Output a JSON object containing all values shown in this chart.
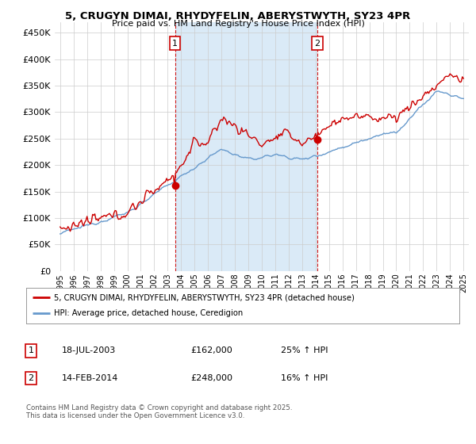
{
  "title_line1": "5, CRUGYN DIMAI, RHYDYFELIN, ABERYSTWYTH, SY23 4PR",
  "title_line2": "Price paid vs. HM Land Registry's House Price Index (HPI)",
  "ylabel_ticks": [
    "£0",
    "£50K",
    "£100K",
    "£150K",
    "£200K",
    "£250K",
    "£300K",
    "£350K",
    "£400K",
    "£450K"
  ],
  "ytick_values": [
    0,
    50000,
    100000,
    150000,
    200000,
    250000,
    300000,
    350000,
    400000,
    450000
  ],
  "ylim": [
    0,
    470000
  ],
  "xlim_start": 1994.6,
  "xlim_end": 2025.4,
  "background_color": "#f0f6fc",
  "shade_color": "#daeaf7",
  "grid_color": "#cccccc",
  "line1_color": "#cc0000",
  "line2_color": "#6699cc",
  "vline_color": "#cc0000",
  "marker1_x": 2003.54,
  "marker1_y": 162000,
  "marker1_label": "1",
  "marker2_x": 2014.12,
  "marker2_y": 248000,
  "marker2_label": "2",
  "legend_line1": "5, CRUGYN DIMAI, RHYDYFELIN, ABERYSTWYTH, SY23 4PR (detached house)",
  "legend_line2": "HPI: Average price, detached house, Ceredigion",
  "note1_label": "1",
  "note1_date": "18-JUL-2003",
  "note1_price": "£162,000",
  "note1_change": "25% ↑ HPI",
  "note2_label": "2",
  "note2_date": "14-FEB-2014",
  "note2_price": "£248,000",
  "note2_change": "16% ↑ HPI",
  "footer": "Contains HM Land Registry data © Crown copyright and database right 2025.\nThis data is licensed under the Open Government Licence v3.0.",
  "xtick_years": [
    1995,
    1996,
    1997,
    1998,
    1999,
    2000,
    2001,
    2002,
    2003,
    2004,
    2005,
    2006,
    2007,
    2008,
    2009,
    2010,
    2011,
    2012,
    2013,
    2014,
    2015,
    2016,
    2017,
    2018,
    2019,
    2020,
    2021,
    2022,
    2023,
    2024,
    2025
  ]
}
